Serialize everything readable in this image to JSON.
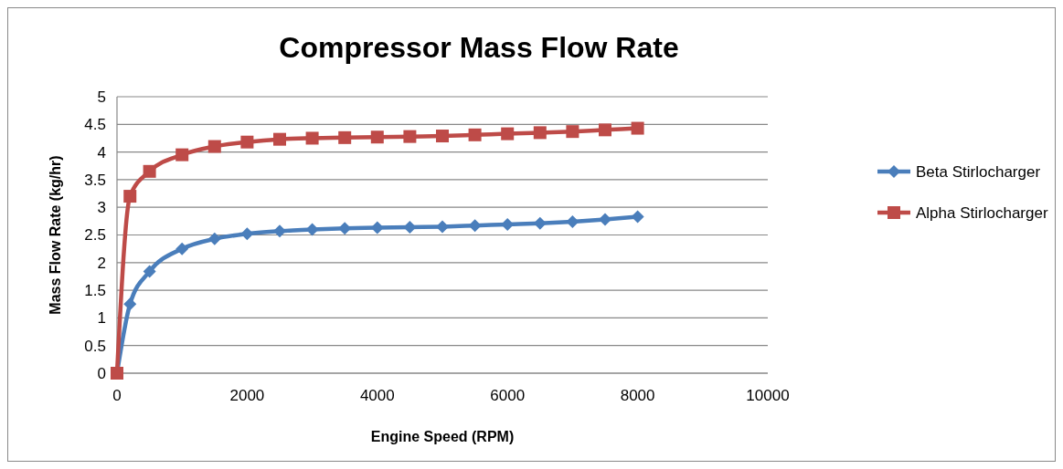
{
  "chart_data": {
    "type": "line",
    "title": "Compressor Mass Flow Rate",
    "xlabel": "Engine Speed (RPM)",
    "ylabel": "Mass Flow Rate  (kg/hr)",
    "x": [
      0,
      200,
      500,
      1000,
      1500,
      2000,
      2500,
      3000,
      3500,
      4000,
      4500,
      5000,
      5500,
      6000,
      6500,
      7000,
      7500,
      8000
    ],
    "series": [
      {
        "name": "Beta Stirlocharger",
        "color": "#4a7ebb",
        "marker": "diamond",
        "values": [
          0,
          1.25,
          1.84,
          2.25,
          2.43,
          2.52,
          2.57,
          2.6,
          2.62,
          2.63,
          2.64,
          2.65,
          2.67,
          2.69,
          2.71,
          2.74,
          2.78,
          2.83
        ]
      },
      {
        "name": "Alpha Stirlocharger",
        "color": "#be4b48",
        "marker": "square",
        "values": [
          0,
          3.2,
          3.65,
          3.95,
          4.1,
          4.18,
          4.23,
          4.25,
          4.26,
          4.27,
          4.28,
          4.29,
          4.31,
          4.33,
          4.35,
          4.37,
          4.4,
          4.43
        ]
      }
    ],
    "xlim": [
      0,
      10000
    ],
    "xticks": [
      0,
      2000,
      4000,
      6000,
      8000,
      10000
    ],
    "ylim": [
      0,
      5
    ],
    "yticks": [
      0,
      0.5,
      1,
      1.5,
      2,
      2.5,
      3,
      3.5,
      4,
      4.5,
      5
    ],
    "grid": "y",
    "legend": "right",
    "line_style": "solid"
  }
}
